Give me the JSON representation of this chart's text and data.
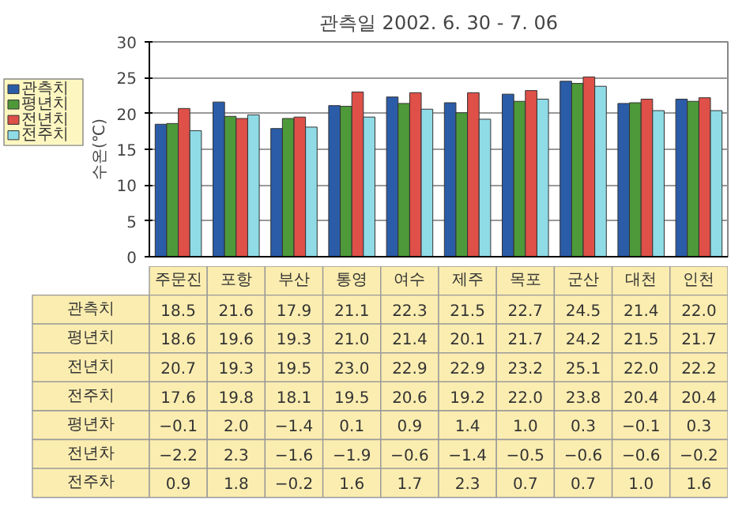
{
  "chart_data": {
    "type": "bar",
    "title": "관측일 2002. 6. 30 - 7. 06",
    "ylabel": "수온(℃)",
    "categories": [
      "주문진",
      "포항",
      "부산",
      "통영",
      "여수",
      "제주",
      "목포",
      "군산",
      "대천",
      "인천"
    ],
    "series": [
      {
        "name": "관측치",
        "color": "#2b5ca8",
        "values": [
          18.5,
          21.6,
          17.9,
          21.1,
          22.3,
          21.5,
          22.7,
          24.5,
          21.4,
          22.0
        ],
        "value_labels": [
          "18.5",
          "21.6",
          "17.9",
          "21.1",
          "22.3",
          "21.5",
          "22.7",
          "24.5",
          "21.4",
          "22.0"
        ]
      },
      {
        "name": "평년치",
        "color": "#4e9a3a",
        "values": [
          18.6,
          19.6,
          19.3,
          21.0,
          21.4,
          20.1,
          21.7,
          24.2,
          21.5,
          21.7
        ],
        "value_labels": [
          "18.6",
          "19.6",
          "19.3",
          "21.0",
          "21.4",
          "20.1",
          "21.7",
          "24.2",
          "21.5",
          "21.7"
        ]
      },
      {
        "name": "전년치",
        "color": "#de5048",
        "values": [
          20.7,
          19.3,
          19.5,
          23.0,
          22.9,
          22.9,
          23.2,
          25.1,
          22.0,
          22.2
        ],
        "value_labels": [
          "20.7",
          "19.3",
          "19.5",
          "23.0",
          "22.9",
          "22.9",
          "23.2",
          "25.1",
          "22.0",
          "22.2"
        ]
      },
      {
        "name": "전주치",
        "color": "#8fdbe6",
        "values": [
          17.6,
          19.8,
          18.1,
          19.5,
          20.6,
          19.2,
          22.0,
          23.8,
          20.4,
          20.4
        ],
        "value_labels": [
          "17.6",
          "19.8",
          "18.1",
          "19.5",
          "20.6",
          "19.2",
          "22.0",
          "23.8",
          "20.4",
          "20.4"
        ]
      }
    ],
    "ylim": [
      0,
      30
    ],
    "yticks": [
      0,
      5,
      10,
      15,
      20,
      25,
      30
    ],
    "grid": "y",
    "legend": "left",
    "tick_labels": "y",
    "annotations": [
      "평년차",
      "−0.1",
      "2.0",
      "−1.4",
      "0.1",
      "0.9",
      "1.4",
      "1.0",
      "0.3",
      "−0.1",
      "0.3",
      "전년차",
      "−2.2",
      "2.3",
      "−1.6",
      "−1.9",
      "−0.6",
      "−1.4",
      "−0.5",
      "−0.6",
      "−0.6",
      "−0.2",
      "전주차",
      "0.9",
      "1.8",
      "−0.2",
      "1.6",
      "1.7",
      "2.3",
      "0.7",
      "0.7",
      "1.0",
      "1.6"
    ]
  }
}
